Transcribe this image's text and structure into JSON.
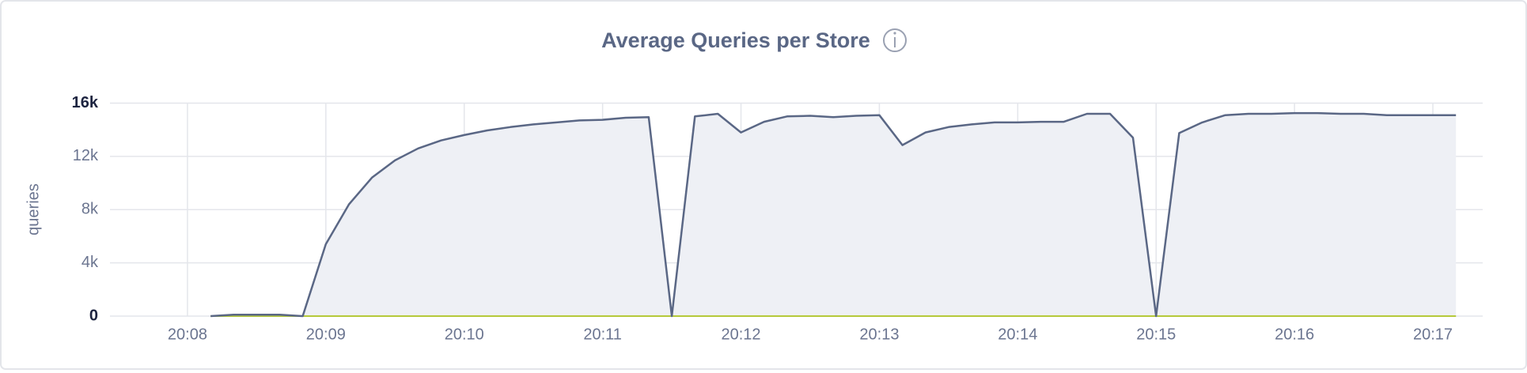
{
  "chart_data": {
    "type": "area",
    "title": "Average Queries per Store",
    "ylabel": "queries",
    "color": "#5a6785",
    "fill": "#eef0f5",
    "grid": true,
    "x": [
      8.167,
      8.333,
      8.5,
      8.667,
      8.833,
      9,
      9.167,
      9.333,
      9.5,
      9.667,
      9.833,
      10,
      10.167,
      10.333,
      10.5,
      10.667,
      10.833,
      11,
      11.167,
      11.333,
      11.5,
      11.667,
      11.833,
      12,
      12.167,
      12.333,
      12.5,
      12.667,
      12.833,
      13,
      13.167,
      13.333,
      13.5,
      13.667,
      13.833,
      14,
      14.167,
      14.333,
      14.5,
      14.667,
      14.833,
      15,
      15.167,
      15.333,
      15.5,
      15.667,
      15.833,
      16,
      16.167,
      16.333,
      16.5,
      16.667,
      16.833,
      17,
      17.167
    ],
    "values": [
      0,
      100,
      100,
      100,
      0,
      5400,
      8400,
      10400,
      11700,
      12600,
      13200,
      13600,
      13950,
      14200,
      14400,
      14550,
      14700,
      14750,
      14900,
      14950,
      0,
      15000,
      15200,
      13800,
      14600,
      15000,
      15050,
      14950,
      15050,
      15100,
      12850,
      13800,
      14200,
      14400,
      14550,
      14550,
      14600,
      14600,
      15200,
      15200,
      13400,
      0,
      13750,
      14550,
      15100,
      15200,
      15200,
      15250,
      15250,
      15200,
      15200,
      15100,
      15100,
      15100,
      15100
    ],
    "xlim": [
      7.44,
      17.36
    ],
    "xticks": [
      {
        "value": 8,
        "label": "20:08"
      },
      {
        "value": 9,
        "label": "20:09"
      },
      {
        "value": 10,
        "label": "20:10"
      },
      {
        "value": 11,
        "label": "20:11"
      },
      {
        "value": 12,
        "label": "20:12"
      },
      {
        "value": 13,
        "label": "20:13"
      },
      {
        "value": 14,
        "label": "20:14"
      },
      {
        "value": 15,
        "label": "20:15"
      },
      {
        "value": 16,
        "label": "20:16"
      },
      {
        "value": 17,
        "label": "20:17"
      }
    ],
    "ylim": [
      0,
      16000
    ],
    "yticks": [
      0,
      {
        "value": 4000,
        "label": "4k"
      },
      {
        "value": 8000,
        "label": "8k"
      },
      {
        "value": 12000,
        "label": "12k"
      },
      {
        "value": 16000,
        "label": "16k"
      }
    ]
  }
}
